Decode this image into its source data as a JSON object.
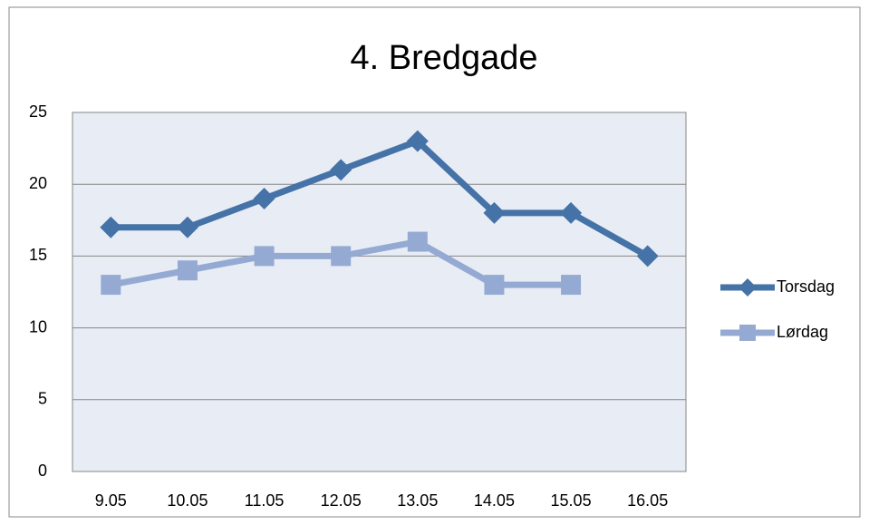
{
  "chart_data": {
    "type": "line",
    "title": "4. Bredgade",
    "categories": [
      "9.05",
      "10.05",
      "11.05",
      "12.05",
      "13.05",
      "14.05",
      "15.05",
      "16.05"
    ],
    "series": [
      {
        "name": "Torsdag",
        "color": "#4572a7",
        "marker": "diamond",
        "values": [
          17,
          17,
          19,
          21,
          23,
          18,
          18,
          15
        ]
      },
      {
        "name": "Lørdag",
        "color": "#95aad3",
        "marker": "square",
        "values": [
          13,
          14,
          15,
          15,
          16,
          13,
          13,
          null
        ]
      }
    ],
    "ylim": [
      0,
      25
    ],
    "yticks": [
      0,
      5,
      10,
      15,
      20,
      25
    ],
    "grid": true,
    "legend": "right"
  }
}
